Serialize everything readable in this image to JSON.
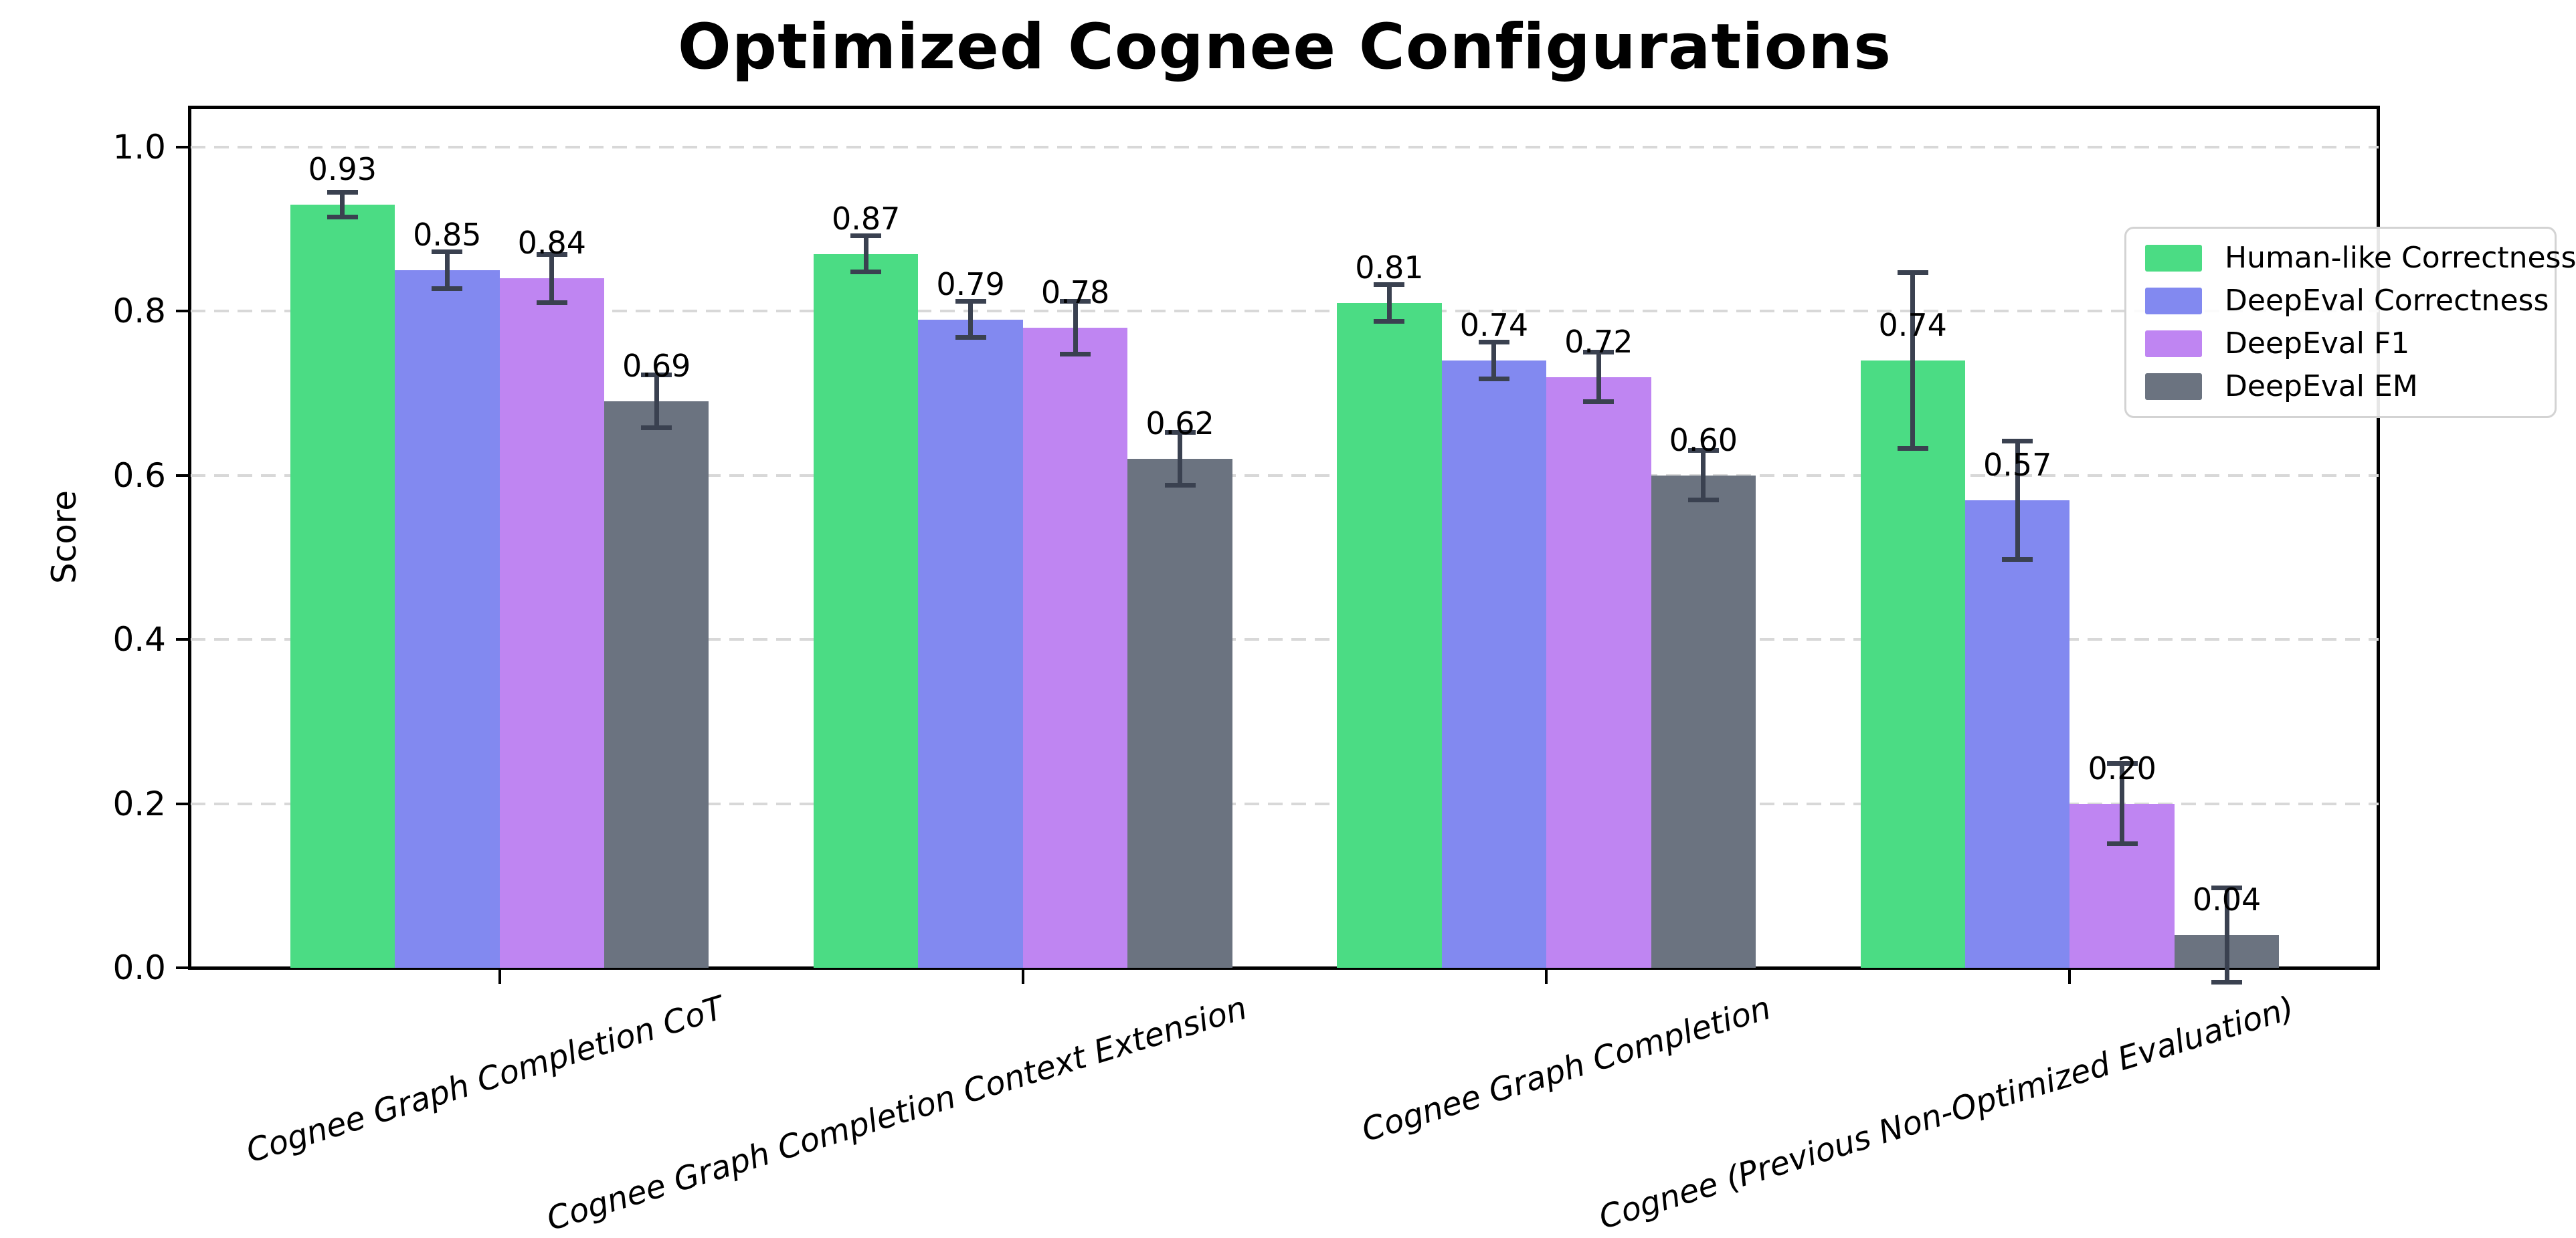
{
  "chart_data": {
    "type": "bar",
    "title": "Optimized Cognee Configurations",
    "xlabel": "",
    "ylabel": "Score",
    "ylim": [
      0,
      1.05
    ],
    "yticks": [
      0.0,
      0.2,
      0.4,
      0.6,
      0.8,
      1.0
    ],
    "grid": "horizontal-dashed",
    "grid_color": "#d8d8d8",
    "axis_color": "#000000",
    "error_bar_color": "#3a4150",
    "legend_position": "upper right",
    "bar_label_decimals": 2,
    "categories": [
      "Cognee Graph Completion CoT",
      "Cognee Graph Completion Context Extension",
      "Cognee Graph Completion",
      "Cognee (Previous Non-Optimized Evaluation)"
    ],
    "series": [
      {
        "name": "Human-like Correctness",
        "color": "#4bdc84",
        "values": [
          0.93,
          0.87,
          0.81,
          0.74
        ],
        "errors": [
          0.018,
          0.025,
          0.025,
          0.11
        ]
      },
      {
        "name": "DeepEval Correctness",
        "color": "#8289f0",
        "values": [
          0.85,
          0.79,
          0.74,
          0.57
        ],
        "errors": [
          0.025,
          0.025,
          0.025,
          0.075
        ]
      },
      {
        "name": "DeepEval F1",
        "color": "#bf85f2",
        "values": [
          0.84,
          0.78,
          0.72,
          0.2
        ],
        "errors": [
          0.032,
          0.035,
          0.033,
          0.052
        ]
      },
      {
        "name": "DeepEval EM",
        "color": "#6b7380",
        "values": [
          0.69,
          0.62,
          0.6,
          0.04
        ],
        "errors": [
          0.035,
          0.035,
          0.033,
          0.06
        ]
      }
    ]
  }
}
